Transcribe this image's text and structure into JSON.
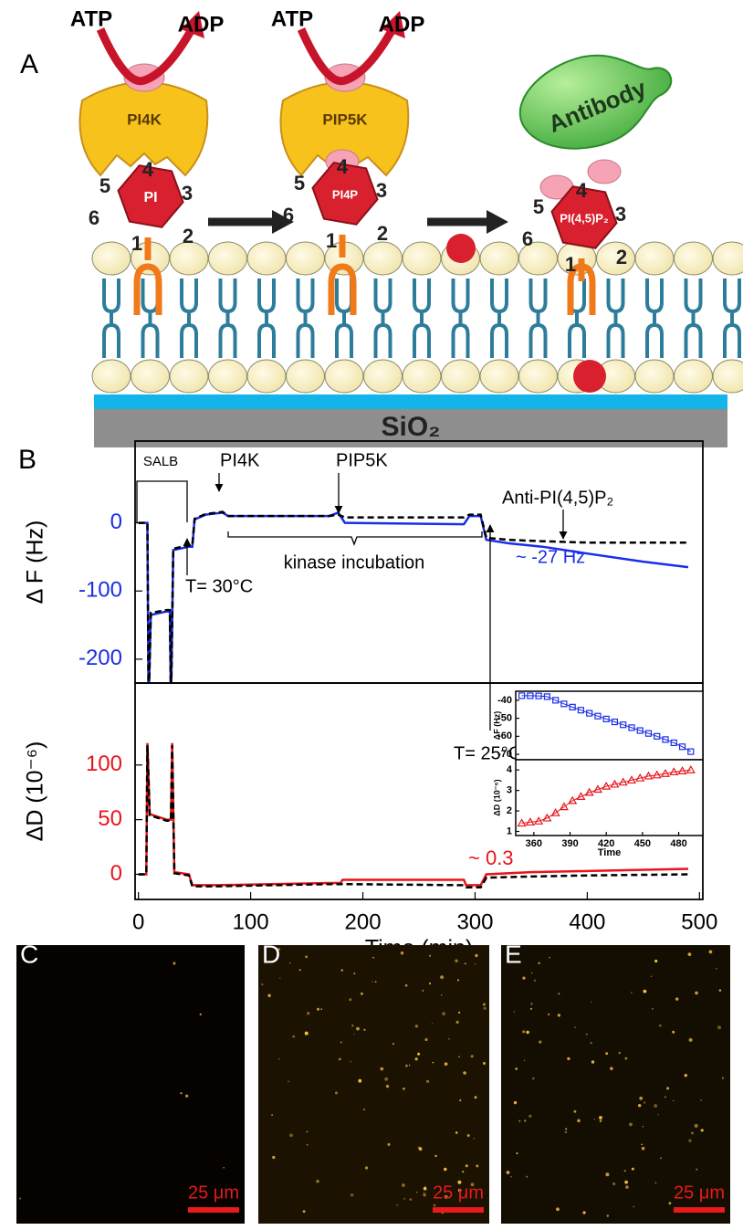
{
  "panel_a": {
    "letter": "A",
    "substrate": "SiO₂",
    "antibody": "Antibody",
    "molecules": [
      {
        "enzyme": "PI4K",
        "head": "PI",
        "atp": "ATP",
        "adp": "ADP",
        "positions": [
          "1",
          "2",
          "3",
          "4",
          "5",
          "6"
        ]
      },
      {
        "enzyme": "PIP5K",
        "head": "PI4P",
        "atp": "ATP",
        "adp": "ADP",
        "positions": [
          "1",
          "2",
          "3",
          "4",
          "5",
          "6"
        ]
      },
      {
        "head": "PI(4,5)P₂",
        "positions": [
          "1",
          "2",
          "3",
          "4",
          "5",
          "6"
        ]
      }
    ]
  },
  "panel_b": {
    "letter": "B"
  },
  "chart_data": [
    {
      "type": "line",
      "ylabel": "Δ F (Hz)",
      "tick_color": "#1a2ee8",
      "xlim": [
        -3,
        503
      ],
      "ylim": [
        -235,
        120
      ],
      "yticks": [
        0,
        -100,
        -200
      ],
      "series": [
        {
          "color": "#1a2ee8",
          "dash": false,
          "x": [
            0,
            8,
            9,
            11,
            25,
            28,
            29,
            31,
            45,
            48,
            50,
            60,
            75,
            80,
            170,
            178,
            184,
            290,
            295,
            305,
            310,
            330,
            360,
            400,
            450,
            490
          ],
          "values": [
            0,
            0,
            -270,
            -135,
            -130,
            -130,
            -270,
            -40,
            -35,
            -35,
            5,
            12,
            15,
            10,
            10,
            15,
            0,
            -2,
            10,
            10,
            -25,
            -30,
            -35,
            -45,
            -57,
            -65
          ]
        },
        {
          "color": "#000000",
          "dash": true,
          "x": [
            0,
            8,
            9,
            11,
            25,
            28,
            29,
            31,
            45,
            48,
            50,
            60,
            75,
            80,
            170,
            178,
            184,
            290,
            295,
            305,
            310,
            330,
            360,
            400,
            450,
            490
          ],
          "values": [
            0,
            0,
            -270,
            -132,
            -128,
            -128,
            -270,
            -38,
            -33,
            -33,
            6,
            13,
            16,
            10,
            10,
            12,
            8,
            8,
            12,
            12,
            -22,
            -25,
            -27,
            -29,
            -29,
            -29
          ]
        }
      ],
      "annotations": [
        {
          "text": "SALB",
          "color": "#000000"
        },
        {
          "text": "PI4K",
          "color": "#000000"
        },
        {
          "text": "PIP5K",
          "color": "#000000"
        },
        {
          "text": "Anti-PI(4,5)P₂",
          "color": "#000000"
        },
        {
          "text": "kinase incubation",
          "color": "#000000"
        },
        {
          "text": "T= 30°C",
          "color": "#000000"
        },
        {
          "text": "T= 25°C",
          "color": "#000000"
        },
        {
          "text": "~ -27 Hz",
          "color": "#1a2ee8"
        }
      ]
    },
    {
      "type": "line",
      "ylabel": "ΔD (10⁻⁶)",
      "xlabel": "Time (min)",
      "tick_color": "#e8141a",
      "xlim": [
        -3,
        503
      ],
      "ylim": [
        -23,
        175
      ],
      "xticks": [
        0,
        100,
        200,
        300,
        400,
        500
      ],
      "yticks": [
        0,
        50,
        100
      ],
      "series": [
        {
          "color": "#e8141a",
          "dash": false,
          "x": [
            0,
            7,
            8,
            10,
            25,
            29,
            30,
            32,
            45,
            48,
            70,
            170,
            180,
            182,
            290,
            292,
            305,
            310,
            350,
            400,
            490
          ],
          "values": [
            0,
            0,
            120,
            55,
            50,
            50,
            120,
            2,
            0,
            -10,
            -10,
            -8,
            -8,
            -5,
            -5,
            -10,
            -10,
            0,
            2,
            3,
            5
          ]
        },
        {
          "color": "#000000",
          "dash": true,
          "x": [
            0,
            7,
            8,
            10,
            25,
            29,
            30,
            32,
            45,
            48,
            70,
            170,
            180,
            182,
            290,
            292,
            305,
            310,
            350,
            400,
            490
          ],
          "values": [
            0,
            0,
            118,
            54,
            49,
            49,
            118,
            1,
            -1,
            -11,
            -11,
            -9,
            -9,
            -9,
            -10,
            -12,
            -12,
            -3,
            -2,
            -1,
            0
          ]
        }
      ],
      "annotations": [
        {
          "text": "~ 0.3",
          "color": "#e8141a"
        }
      ]
    },
    {
      "type": "scatter",
      "ylabel": "ΔF (Hz)",
      "xlim": [
        345,
        500
      ],
      "ylim": [
        -73,
        -35
      ],
      "yticks": [
        -40,
        -50,
        -60,
        -70
      ],
      "series": [
        {
          "color": "#1a2ee8",
          "marker": "square",
          "x": [
            350,
            357,
            364,
            371,
            378,
            385,
            392,
            399,
            406,
            413,
            420,
            427,
            434,
            441,
            448,
            455,
            462,
            469,
            476,
            483,
            490
          ],
          "values": [
            -37.5,
            -37.5,
            -37.6,
            -38,
            -40,
            -42,
            -43.8,
            -45.5,
            -47.2,
            -48.8,
            -50.4,
            -52,
            -53.6,
            -55.2,
            -56.8,
            -58.4,
            -60,
            -61.8,
            -63.6,
            -65.8,
            -68.5
          ]
        }
      ]
    },
    {
      "type": "scatter",
      "ylabel": "ΔD (10⁻⁶)",
      "xlabel": "Time",
      "xlim": [
        345,
        500
      ],
      "ylim": [
        0.8,
        4.5
      ],
      "xticks": [
        360,
        390,
        420,
        450,
        480
      ],
      "yticks": [
        1,
        2,
        3,
        4
      ],
      "series": [
        {
          "color": "#e8141a",
          "marker": "triangle",
          "x": [
            350,
            357,
            364,
            371,
            378,
            385,
            392,
            399,
            406,
            413,
            420,
            427,
            434,
            441,
            448,
            455,
            462,
            469,
            476,
            483,
            490
          ],
          "values": [
            1.4,
            1.45,
            1.5,
            1.65,
            1.9,
            2.2,
            2.5,
            2.7,
            2.9,
            3.05,
            3.2,
            3.3,
            3.4,
            3.5,
            3.6,
            3.7,
            3.75,
            3.82,
            3.9,
            3.95,
            4.0
          ]
        }
      ]
    }
  ],
  "images": [
    {
      "letter": "C",
      "scale_bar": "25 μm"
    },
    {
      "letter": "D",
      "scale_bar": "25 μm"
    },
    {
      "letter": "E",
      "scale_bar": "25 μm"
    }
  ]
}
